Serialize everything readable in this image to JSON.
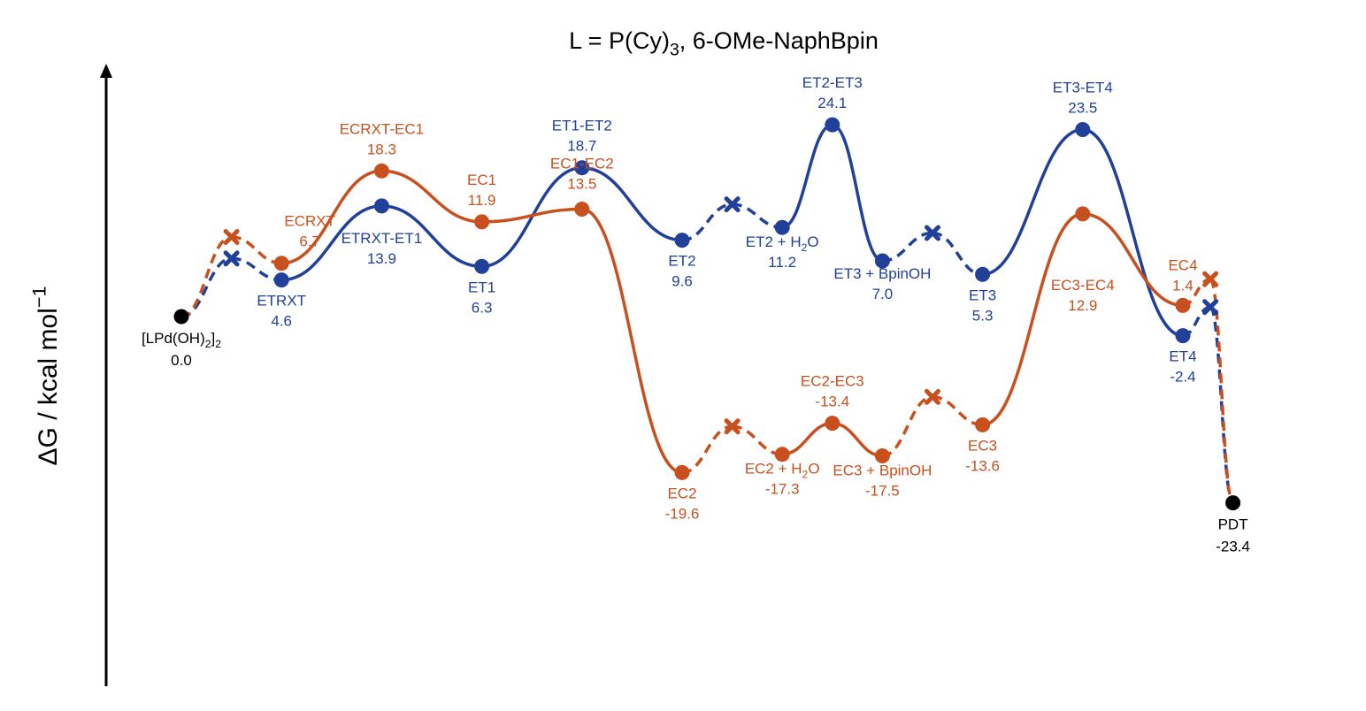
{
  "chart_data": {
    "type": "line",
    "title": "L = P(Cy)₃, 6-OMe-NaphBpin",
    "ylabel": "ΔG / kcal mol⁻¹",
    "xlabel": "",
    "ylim": [
      -37,
      42
    ],
    "grid": false,
    "colors": {
      "blue": "#21409a",
      "orange": "#c8501e",
      "black": "#000000"
    },
    "black_points": [
      {
        "x": 1,
        "y": 0.0,
        "name": "[LPd(OH)₂]₂",
        "value": "0.0"
      },
      {
        "x": 22,
        "y": -23.4,
        "name": "PDT",
        "value": "-23.4"
      }
    ],
    "series": [
      {
        "color_key": "blue",
        "points": [
          {
            "x": 1,
            "y": 0.0,
            "kind": "pt"
          },
          {
            "x": 2,
            "y": 7.3,
            "kind": "x"
          },
          {
            "x": 3,
            "y": 4.6,
            "kind": "pt",
            "name": "ETRXT",
            "value": "4.6"
          },
          {
            "x": 5,
            "y": 13.9,
            "kind": "pt",
            "name": "ETRXT-ET1",
            "value": "13.9"
          },
          {
            "x": 7,
            "y": 6.3,
            "kind": "pt",
            "name": "ET1",
            "value": "6.3"
          },
          {
            "x": 9,
            "y": 18.7,
            "kind": "pt",
            "name": "ET1-ET2",
            "value": "18.7"
          },
          {
            "x": 11,
            "y": 9.6,
            "kind": "pt",
            "name": "ET2",
            "value": "9.6"
          },
          {
            "x": 12,
            "y": 14.1,
            "kind": "x"
          },
          {
            "x": 13,
            "y": 11.2,
            "kind": "pt",
            "name": "ET2 + H₂O",
            "value": "11.2"
          },
          {
            "x": 14,
            "y": 24.1,
            "kind": "pt",
            "name": "ET2-ET3",
            "value": "24.1"
          },
          {
            "x": 15,
            "y": 7.0,
            "kind": "pt",
            "name": "ET3 + BpinOH",
            "value": "7.0"
          },
          {
            "x": 16,
            "y": 10.5,
            "kind": "x"
          },
          {
            "x": 17,
            "y": 5.3,
            "kind": "pt",
            "name": "ET3",
            "value": "5.3"
          },
          {
            "x": 19,
            "y": 23.5,
            "kind": "pt",
            "name": "ET3-ET4",
            "value": "23.5"
          },
          {
            "x": 21,
            "y": -2.4,
            "kind": "pt",
            "name": "ET4",
            "value": "-2.4"
          },
          {
            "x": 21.55,
            "y": 1.2,
            "kind": "x"
          },
          {
            "x": 22,
            "y": -23.4,
            "kind": "pt"
          }
        ],
        "dashed_segments": [
          [
            1,
            2
          ],
          [
            2,
            3
          ],
          [
            11,
            12
          ],
          [
            12,
            13
          ],
          [
            15,
            16
          ],
          [
            16,
            17
          ],
          [
            21,
            21.55
          ],
          [
            21.55,
            22
          ]
        ]
      },
      {
        "color_key": "orange",
        "points": [
          {
            "x": 1,
            "y": 0.0,
            "kind": "pt"
          },
          {
            "x": 2,
            "y": 10.0,
            "kind": "x"
          },
          {
            "x": 3,
            "y": 6.7,
            "kind": "pt",
            "name": "ECRXT",
            "value": "6.7"
          },
          {
            "x": 5,
            "y": 18.3,
            "kind": "pt",
            "name": "ECRXT-EC1",
            "value": "18.3"
          },
          {
            "x": 7,
            "y": 11.9,
            "kind": "pt",
            "name": "EC1",
            "value": "11.9"
          },
          {
            "x": 9,
            "y": 13.5,
            "kind": "pt",
            "name": "EC1-EC2",
            "value": "13.5"
          },
          {
            "x": 11,
            "y": -19.6,
            "kind": "pt",
            "name": "EC2",
            "value": "-19.6"
          },
          {
            "x": 12,
            "y": -13.8,
            "kind": "x"
          },
          {
            "x": 13,
            "y": -17.3,
            "kind": "pt",
            "name": "EC2 + H₂O",
            "value": "-17.3"
          },
          {
            "x": 14,
            "y": -13.4,
            "kind": "pt",
            "name": "EC2-EC3",
            "value": "-13.4"
          },
          {
            "x": 15,
            "y": -17.5,
            "kind": "pt",
            "name": "EC3 + BpinOH",
            "value": "-17.5"
          },
          {
            "x": 16,
            "y": -10.1,
            "kind": "x"
          },
          {
            "x": 17,
            "y": -13.6,
            "kind": "pt",
            "name": "EC3",
            "value": "-13.6"
          },
          {
            "x": 19,
            "y": 12.9,
            "kind": "pt",
            "name": "EC3-EC4",
            "value": "12.9"
          },
          {
            "x": 21,
            "y": 1.4,
            "kind": "pt",
            "name": "EC4",
            "value": "1.4"
          },
          {
            "x": 21.55,
            "y": 4.7,
            "kind": "x"
          },
          {
            "x": 22,
            "y": -23.4,
            "kind": "pt"
          }
        ],
        "dashed_segments": [
          [
            1,
            2
          ],
          [
            2,
            3
          ],
          [
            11,
            12
          ],
          [
            12,
            13
          ],
          [
            15,
            16
          ],
          [
            16,
            17
          ],
          [
            21,
            21.55
          ],
          [
            21.55,
            22
          ]
        ]
      }
    ]
  }
}
